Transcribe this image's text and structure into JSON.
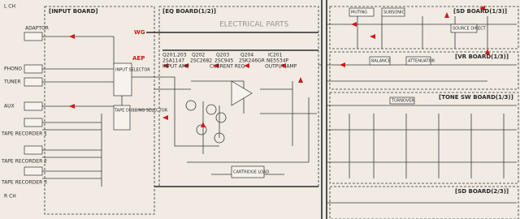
{
  "boards": [
    "[INPUT BOARD]",
    "[EQ BOARD(1/2)]",
    "[SD BOARD(1/3)]",
    "[VR BOARD(1/3)]",
    "[TONE SW BOARD(1/3)]",
    "[SD BOARD(2/3)]"
  ],
  "input_jacks": [
    "ADAPTOR",
    "PHONO",
    "TUNER",
    "AUX",
    "TAPE RECORDER 1",
    "TAPE RECORDER 2",
    "TAPE RECORDER 3"
  ],
  "transistors": [
    {
      "ref": "Q201,203",
      "part": "2SA1147",
      "role": "INPUT AMP"
    },
    {
      "ref": "Q202",
      "part": "2SC2682"
    },
    {
      "ref": "Q203",
      "part": "2SC945",
      "role": "CURRENT REG"
    },
    {
      "ref": "Q204",
      "part": "2SK246GR"
    },
    {
      "ref": "IC201",
      "part": "NE5534P",
      "role": "OUTPUT AMP"
    }
  ],
  "blocks": [
    "INPUT SELECTOR",
    "TAPE DUBBING SELECTOR",
    "CARTRIDGE LOAD",
    "MUTING",
    "SUBSONIC",
    "SOURCE DIRECT",
    "BALANCE",
    "ATTENUATOR",
    "TURNOVER"
  ],
  "marks": [
    "AEP",
    "WG",
    "ELECTRICAL PARTS",
    "L CH",
    "R CH"
  ]
}
